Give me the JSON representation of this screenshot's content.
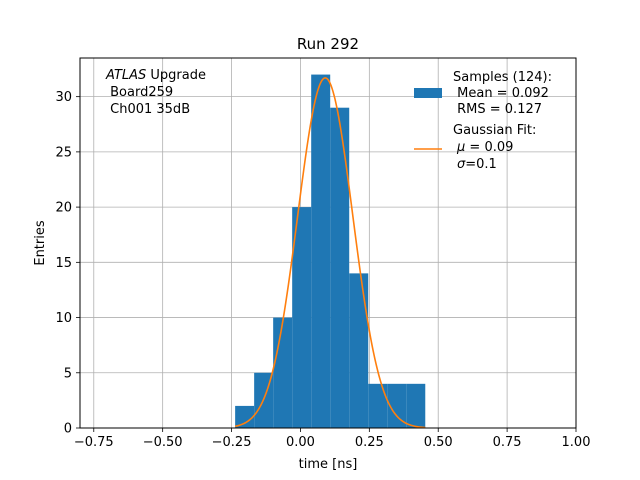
{
  "chart_data": {
    "type": "bar",
    "title": "Run 292",
    "xlabel": "time [ns]",
    "ylabel": "Entries",
    "xlim": [
      -0.8,
      1.0
    ],
    "ylim": [
      0,
      33.5
    ],
    "grid": true,
    "legend_position": "top-right",
    "xticks": [
      -0.75,
      -0.5,
      -0.25,
      0.0,
      0.25,
      0.5,
      0.75,
      1.0
    ],
    "xtick_labels": [
      "−0.75",
      "−0.50",
      "−0.25",
      "0.00",
      "0.25",
      "0.50",
      "0.75",
      "1.00"
    ],
    "yticks": [
      0,
      5,
      10,
      15,
      20,
      25,
      30
    ],
    "ytick_labels": [
      "0",
      "5",
      "10",
      "15",
      "20",
      "25",
      "30"
    ],
    "histogram": {
      "bin_edges": [
        -0.237,
        -0.168,
        -0.099,
        -0.03,
        0.039,
        0.108,
        0.177,
        0.246,
        0.315,
        0.384,
        0.453
      ],
      "counts": [
        2,
        5,
        10,
        20,
        32,
        29,
        14,
        4,
        4,
        4
      ],
      "color": "#1f77b4"
    },
    "fit": {
      "function": "gaussian",
      "mu": 0.09,
      "sigma": 0.1,
      "amplitude": 31.7,
      "x_range": [
        -0.237,
        0.453
      ],
      "color": "#ff7f0e"
    },
    "annotation": {
      "italic": "ATLAS",
      "line1_rest": " Upgrade",
      "line2": " Board259",
      "line3": " Ch001 35dB"
    },
    "legend": {
      "samples": {
        "line1": "Samples (124):",
        "line2": " Mean = 0.092",
        "line3": " RMS = 0.127"
      },
      "fit": {
        "line1": "Gaussian Fit:",
        "line2_sym": "μ",
        "line2_rest": " = 0.09",
        "line3_sym": "σ",
        "line3_rest": "=0.1"
      }
    }
  }
}
